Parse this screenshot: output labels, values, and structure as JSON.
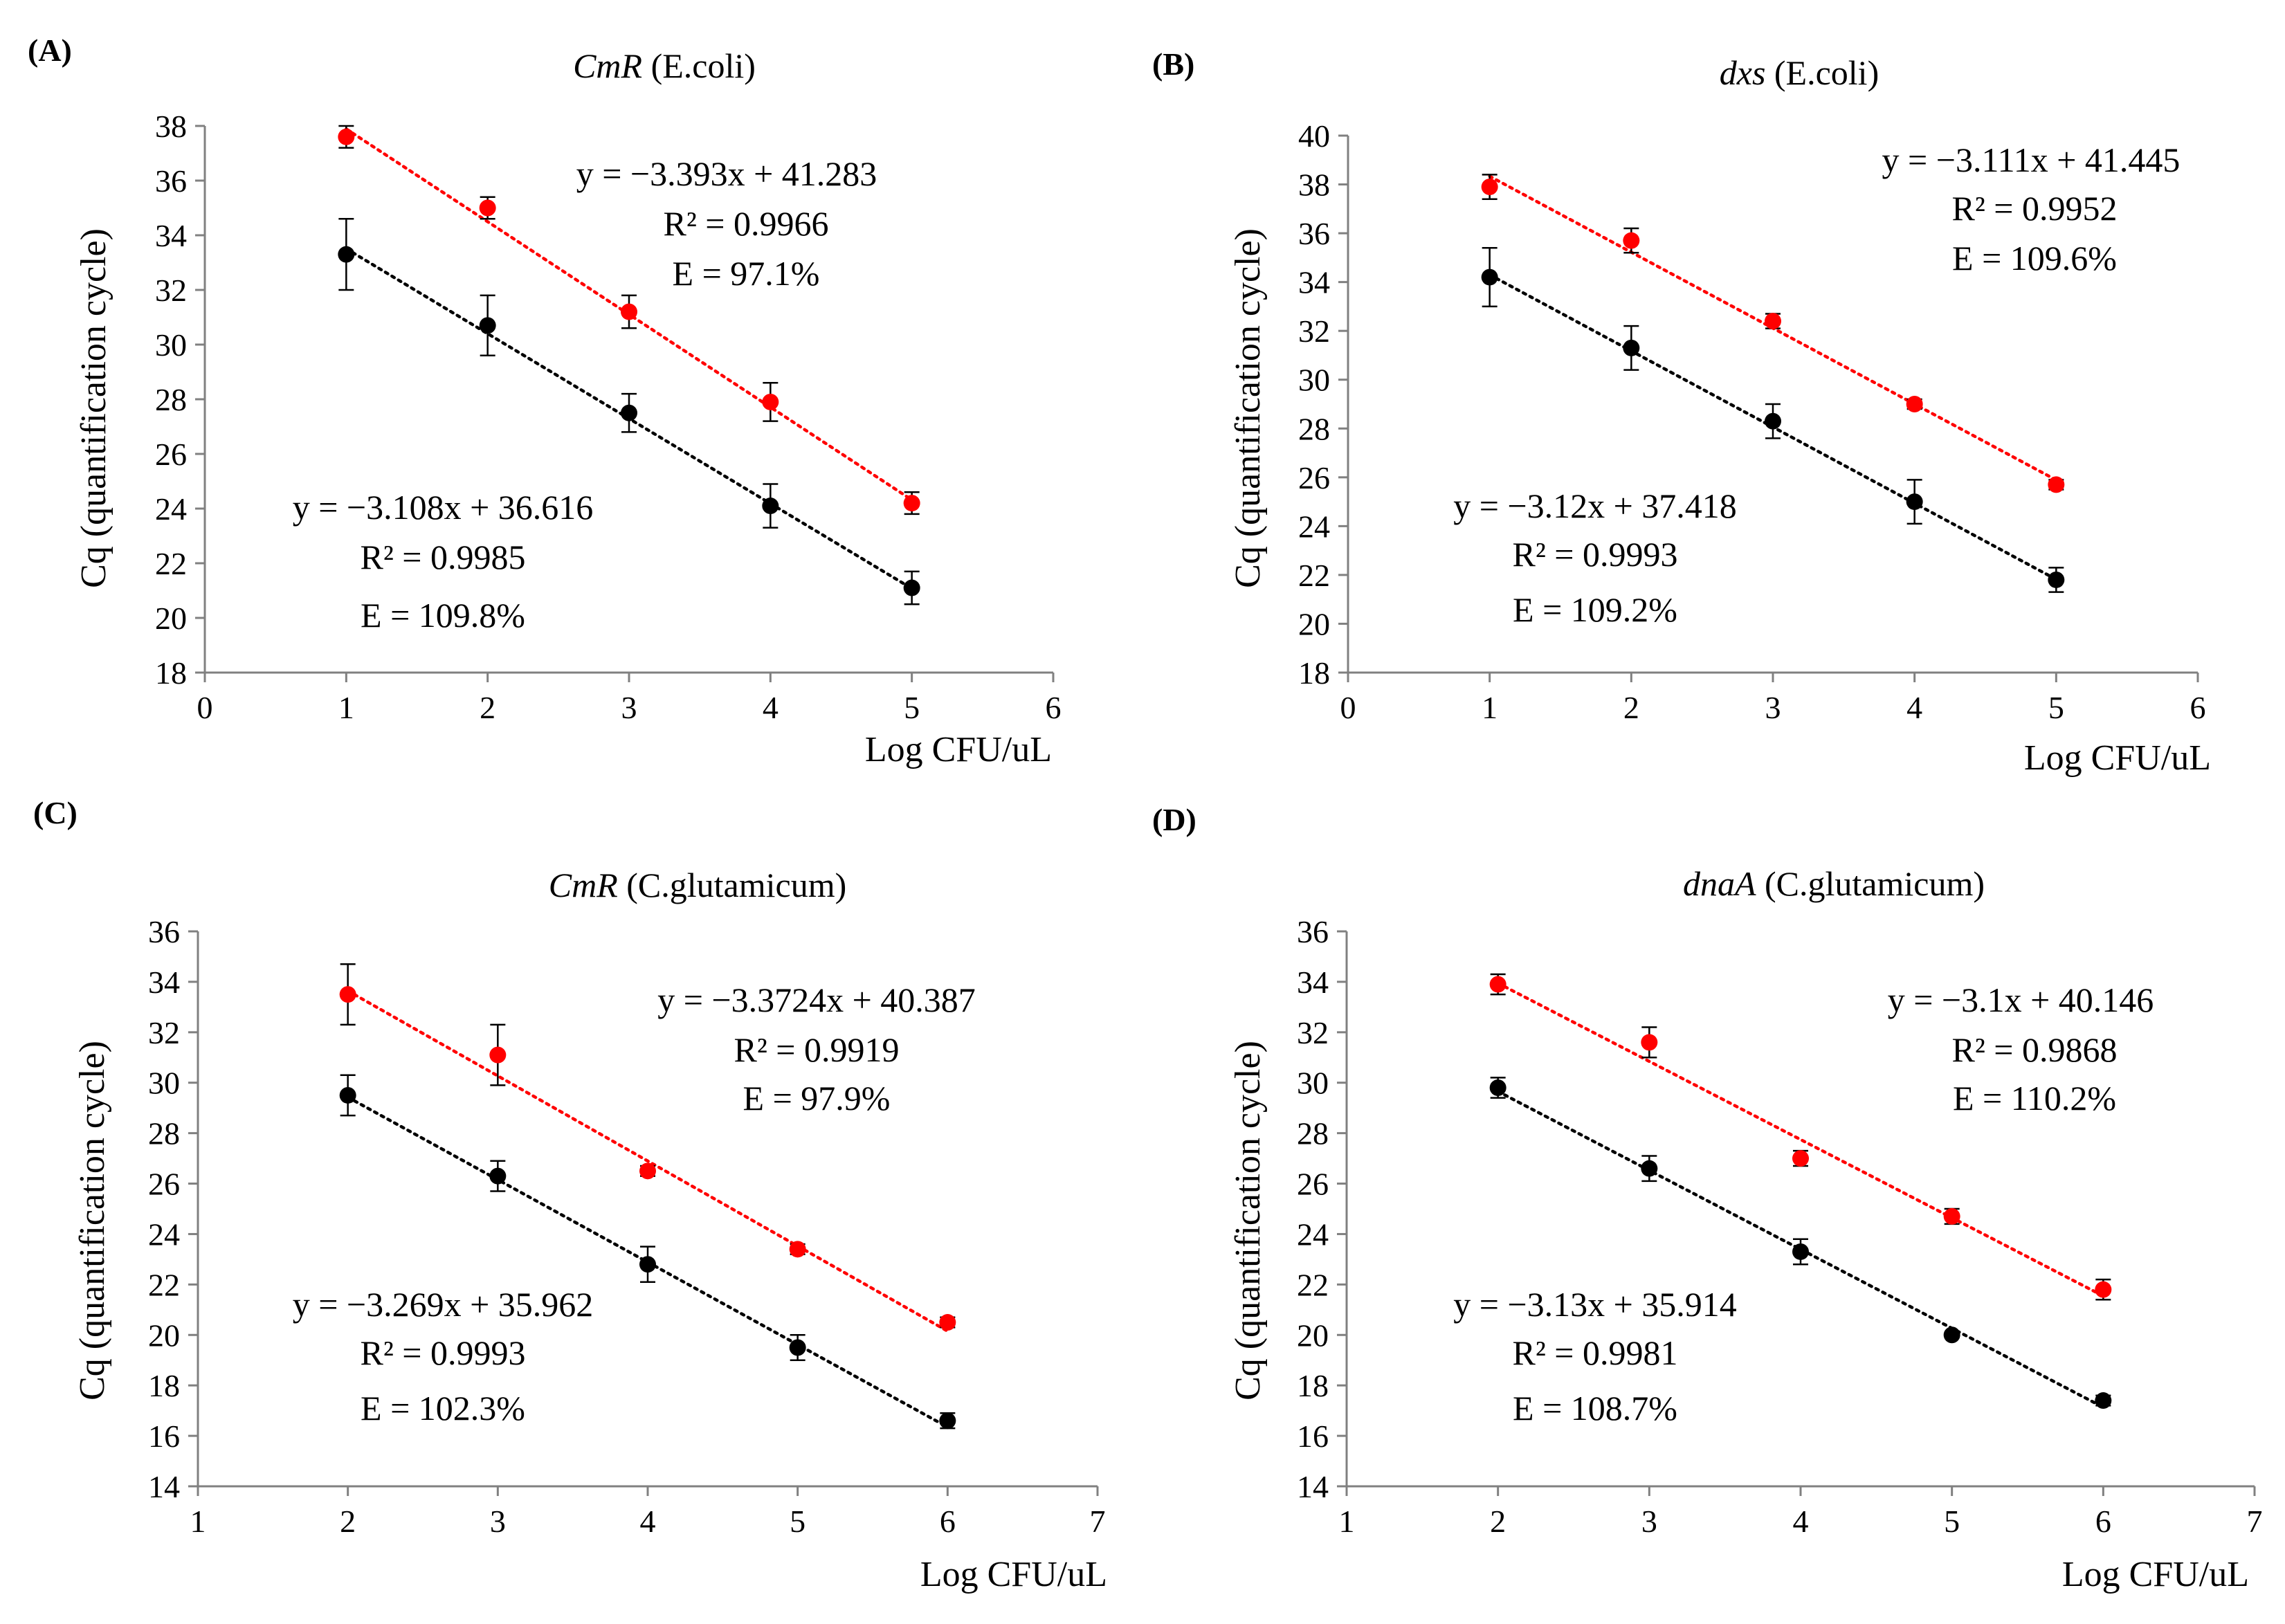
{
  "colors": {
    "red_series": "#ff0000",
    "black_series": "#000000",
    "axis": "#808080"
  },
  "chart_data": [
    {
      "panel_label": "(A)",
      "type": "scatter",
      "title_gene": "CmR",
      "title_organism": "(E.coli)",
      "xlabel": "Log CFU/uL",
      "ylabel": "Cq (quantification cycle)",
      "xlim": [
        0,
        6
      ],
      "xticks": [
        "0",
        "1",
        "2",
        "3",
        "4",
        "5",
        "6"
      ],
      "ylim": [
        18,
        38
      ],
      "yticks": [
        "18",
        "20",
        "22",
        "24",
        "26",
        "28",
        "30",
        "32",
        "34",
        "36",
        "38"
      ],
      "series": [
        {
          "name": "red",
          "color": "#ff0000",
          "x": [
            1,
            2,
            3,
            4,
            5
          ],
          "y": [
            37.6,
            35.0,
            31.2,
            27.9,
            24.2
          ],
          "err": [
            0.4,
            0.4,
            0.6,
            0.7,
            0.4
          ],
          "fit": {
            "slope": -3.393,
            "intercept": 41.283
          },
          "eq": "y = −3.393x + 41.283",
          "r2": "R² = 0.9966",
          "eff": "E = 97.1%"
        },
        {
          "name": "black",
          "color": "#000000",
          "x": [
            1,
            2,
            3,
            4,
            5
          ],
          "y": [
            33.3,
            30.7,
            27.5,
            24.1,
            21.1
          ],
          "err": [
            1.3,
            1.1,
            0.7,
            0.8,
            0.6
          ],
          "fit": {
            "slope": -3.108,
            "intercept": 36.616
          },
          "eq": "y = −3.108x + 36.616",
          "r2": "R² = 0.9985",
          "eff": "E = 109.8%"
        }
      ]
    },
    {
      "panel_label": "(B)",
      "type": "scatter",
      "title_gene": "dxs",
      "title_organism": "(E.coli)",
      "xlabel": "Log CFU/uL",
      "ylabel": "Cq (quantification cycle)",
      "xlim": [
        0,
        6
      ],
      "xticks": [
        "0",
        "1",
        "2",
        "3",
        "4",
        "5",
        "6"
      ],
      "ylim": [
        18,
        40
      ],
      "yticks": [
        "18",
        "20",
        "22",
        "24",
        "26",
        "28",
        "30",
        "32",
        "34",
        "36",
        "38",
        "40"
      ],
      "series": [
        {
          "name": "red",
          "color": "#ff0000",
          "x": [
            1,
            2,
            3,
            4,
            5
          ],
          "y": [
            37.9,
            35.7,
            32.4,
            29.0,
            25.7
          ],
          "err": [
            0.5,
            0.5,
            0.3,
            0.2,
            0.2
          ],
          "fit": {
            "slope": -3.111,
            "intercept": 41.445
          },
          "eq": "y = −3.111x + 41.445",
          "r2": "R² = 0.9952",
          "eff": "E = 109.6%"
        },
        {
          "name": "black",
          "color": "#000000",
          "x": [
            1,
            2,
            3,
            4,
            5
          ],
          "y": [
            34.2,
            31.3,
            28.3,
            25.0,
            21.8
          ],
          "err": [
            1.2,
            0.9,
            0.7,
            0.9,
            0.5
          ],
          "fit": {
            "slope": -3.12,
            "intercept": 37.418
          },
          "eq": "y = −3.12x + 37.418",
          "r2": "R² = 0.9993",
          "eff": "E = 109.2%"
        }
      ]
    },
    {
      "panel_label": "(C)",
      "type": "scatter",
      "title_gene": "CmR",
      "title_organism": "(C.glutamicum)",
      "xlabel": "Log CFU/uL",
      "ylabel": "Cq (quantification cycle)",
      "xlim": [
        1,
        7
      ],
      "xticks": [
        "1",
        "2",
        "3",
        "4",
        "5",
        "6",
        "7"
      ],
      "ylim": [
        14,
        36
      ],
      "yticks": [
        "14",
        "16",
        "18",
        "20",
        "22",
        "24",
        "26",
        "28",
        "30",
        "32",
        "34",
        "36"
      ],
      "series": [
        {
          "name": "red",
          "color": "#ff0000",
          "x": [
            2,
            3,
            4,
            5,
            6
          ],
          "y": [
            33.5,
            31.1,
            26.5,
            23.4,
            20.5
          ],
          "err": [
            1.2,
            1.2,
            0.2,
            0.2,
            0.2
          ],
          "fit": {
            "slope": -3.3724,
            "intercept": 40.387
          },
          "eq": "y = −3.3724x + 40.387",
          "r2": "R² = 0.9919",
          "eff": "E = 97.9%"
        },
        {
          "name": "black",
          "color": "#000000",
          "x": [
            2,
            3,
            4,
            5,
            6
          ],
          "y": [
            29.5,
            26.3,
            22.8,
            19.5,
            16.6
          ],
          "err": [
            0.8,
            0.6,
            0.7,
            0.5,
            0.3
          ],
          "fit": {
            "slope": -3.269,
            "intercept": 35.962
          },
          "eq": "y = −3.269x + 35.962",
          "r2": "R² = 0.9993",
          "eff": "E = 102.3%"
        }
      ]
    },
    {
      "panel_label": "(D)",
      "type": "scatter",
      "title_gene": "dnaA",
      "title_organism": "(C.glutamicum)",
      "xlabel": "Log CFU/uL",
      "ylabel": "Cq (quantification cycle)",
      "xlim": [
        1,
        7
      ],
      "xticks": [
        "1",
        "2",
        "3",
        "4",
        "5",
        "6",
        "7"
      ],
      "ylim": [
        14,
        36
      ],
      "yticks": [
        "14",
        "16",
        "18",
        "20",
        "22",
        "24",
        "26",
        "28",
        "30",
        "32",
        "34",
        "36"
      ],
      "series": [
        {
          "name": "red",
          "color": "#ff0000",
          "x": [
            2,
            3,
            4,
            5,
            6
          ],
          "y": [
            33.9,
            31.6,
            27.0,
            24.7,
            21.8
          ],
          "err": [
            0.4,
            0.6,
            0.3,
            0.3,
            0.4
          ],
          "fit": {
            "slope": -3.1,
            "intercept": 40.146
          },
          "eq": "y = −3.1x + 40.146",
          "r2": "R² = 0.9868",
          "eff": "E = 110.2%"
        },
        {
          "name": "black",
          "color": "#000000",
          "x": [
            2,
            3,
            4,
            5,
            6
          ],
          "y": [
            29.8,
            26.6,
            23.3,
            20.0,
            17.4
          ],
          "err": [
            0.4,
            0.5,
            0.5,
            0.1,
            0.2
          ],
          "fit": {
            "slope": -3.13,
            "intercept": 35.914
          },
          "eq": "y = −3.13x + 35.914",
          "r2": "R² = 0.9981",
          "eff": "E = 108.7%"
        }
      ]
    }
  ]
}
